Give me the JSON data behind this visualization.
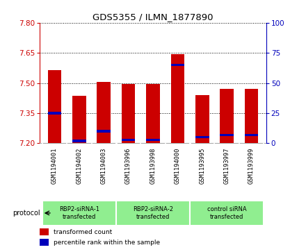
{
  "title": "GDS5355 / ILMN_1877890",
  "samples": [
    "GSM1194001",
    "GSM1194002",
    "GSM1194003",
    "GSM1193996",
    "GSM1193998",
    "GSM1194000",
    "GSM1193995",
    "GSM1193997",
    "GSM1193999"
  ],
  "red_values": [
    7.565,
    7.435,
    7.505,
    7.495,
    7.495,
    7.645,
    7.44,
    7.47,
    7.47
  ],
  "blue_values": [
    25,
    2,
    10,
    3,
    3,
    65,
    5,
    7,
    7
  ],
  "ylim_left": [
    7.2,
    7.8
  ],
  "ylim_right": [
    0,
    100
  ],
  "yticks_left": [
    7.2,
    7.35,
    7.5,
    7.65,
    7.8
  ],
  "yticks_right": [
    0,
    25,
    50,
    75,
    100
  ],
  "bar_width": 0.55,
  "red_color": "#CC0000",
  "blue_color": "#0000BB",
  "left_axis_color": "#CC0000",
  "right_axis_color": "#0000BB",
  "protocol_label": "protocol",
  "group_configs": [
    {
      "start": 0,
      "end": 2,
      "label": "RBP2-siRNA-1\ntransfected"
    },
    {
      "start": 3,
      "end": 5,
      "label": "RBP2-siRNA-2\ntransfected"
    },
    {
      "start": 6,
      "end": 8,
      "label": "control siRNA\ntransfected"
    }
  ],
  "group_color": "#90EE90",
  "label_bg_color": "#d0d0d0",
  "legend_red": "transformed count",
  "legend_blue": "percentile rank within the sample"
}
